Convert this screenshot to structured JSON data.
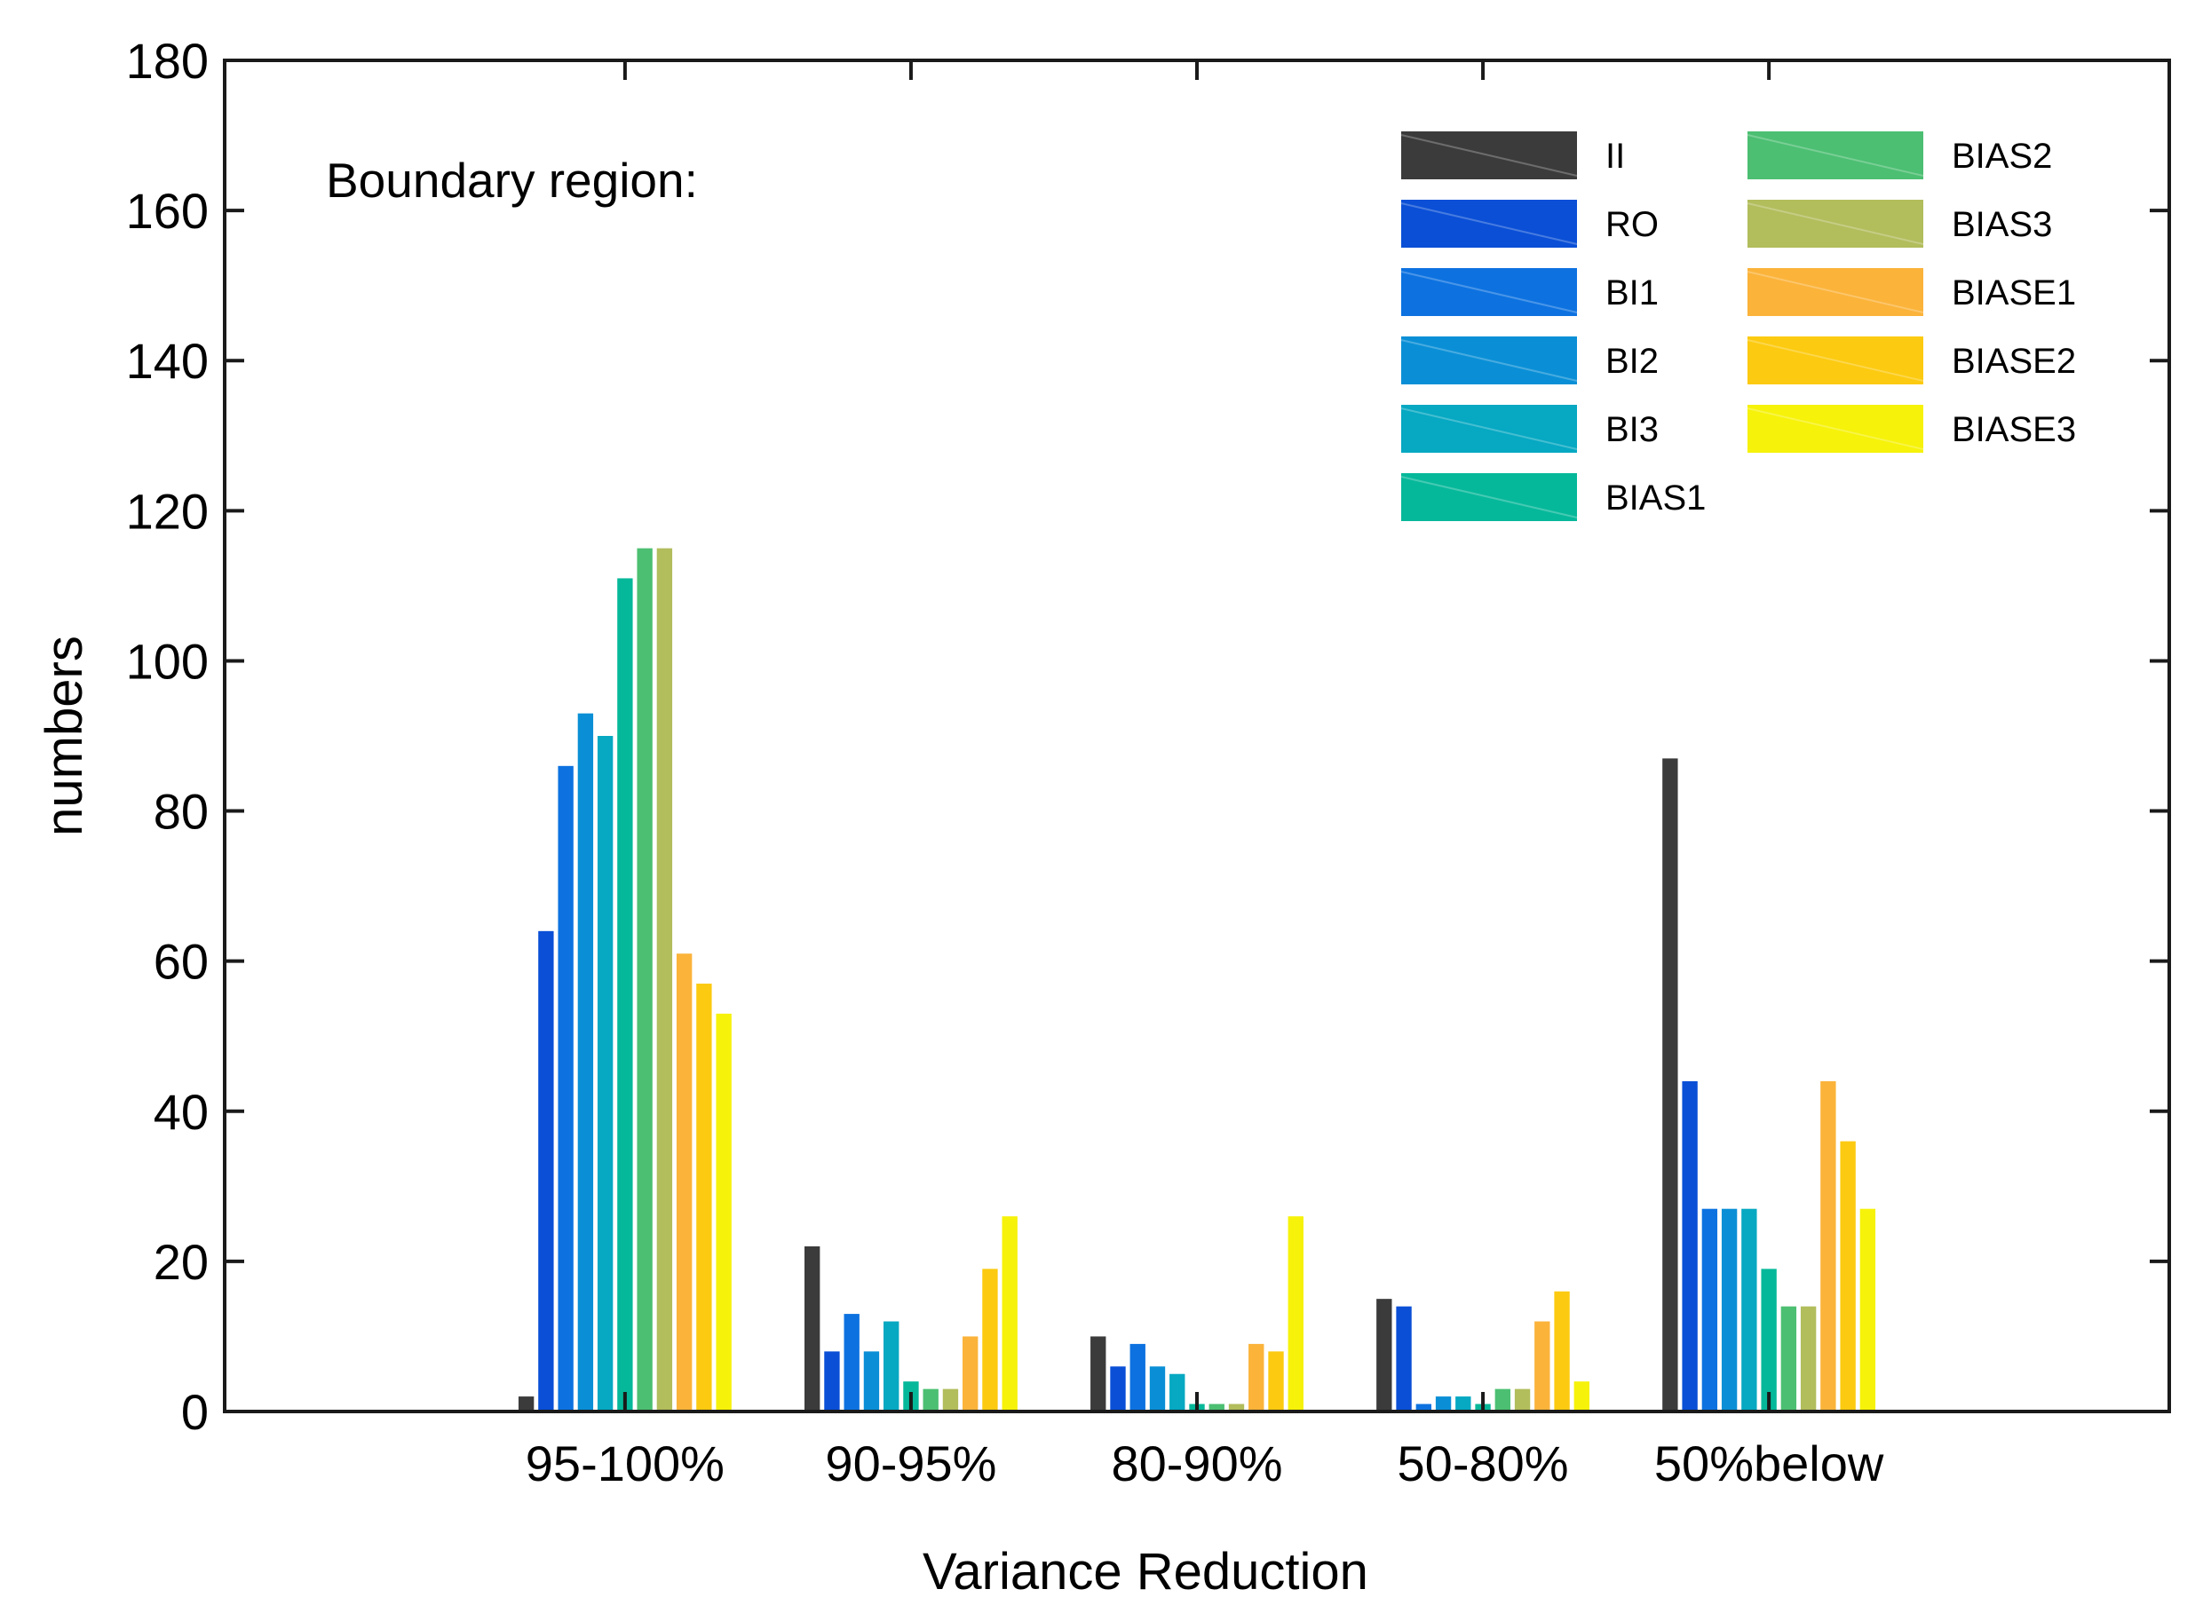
{
  "chart_data": {
    "type": "bar",
    "title": "",
    "annotation": "Boundary region:",
    "xlabel": "Variance Reduction",
    "ylabel": "numbers",
    "ylim": [
      0,
      180
    ],
    "yticks": [
      "0",
      "20",
      "40",
      "60",
      "80",
      "100",
      "120",
      "140",
      "160",
      "180"
    ],
    "categories": [
      "95-100%",
      "90-95%",
      "80-90%",
      "50-80%",
      "50%below"
    ],
    "legend_position": "top-right",
    "grid": false,
    "series": [
      {
        "name": "II",
        "color": "#3b3b3b",
        "values": [
          2,
          22,
          10,
          15,
          87
        ]
      },
      {
        "name": "RO",
        "color": "#0a4fd6",
        "values": [
          64,
          8,
          6,
          14,
          44
        ]
      },
      {
        "name": "BI1",
        "color": "#0d72e0",
        "values": [
          86,
          13,
          9,
          1,
          27
        ]
      },
      {
        "name": "BI2",
        "color": "#0a8fd6",
        "values": [
          93,
          8,
          6,
          2,
          27
        ]
      },
      {
        "name": "BI3",
        "color": "#06a8c2",
        "values": [
          90,
          12,
          5,
          2,
          27
        ]
      },
      {
        "name": "BIAS1",
        "color": "#06b89a",
        "values": [
          111,
          4,
          1,
          1,
          19
        ]
      },
      {
        "name": "BIAS2",
        "color": "#4cbf72",
        "values": [
          115,
          3,
          1,
          3,
          14
        ]
      },
      {
        "name": "BIAS3",
        "color": "#b2bd5c",
        "values": [
          115,
          3,
          1,
          3,
          14
        ]
      },
      {
        "name": "BIASE1",
        "color": "#fbb33a",
        "values": [
          61,
          10,
          9,
          12,
          44
        ]
      },
      {
        "name": "BIASE2",
        "color": "#fcca10",
        "values": [
          57,
          19,
          8,
          16,
          36
        ]
      },
      {
        "name": "BIASE3",
        "color": "#f6f20a",
        "values": [
          53,
          26,
          26,
          4,
          27
        ]
      }
    ]
  }
}
